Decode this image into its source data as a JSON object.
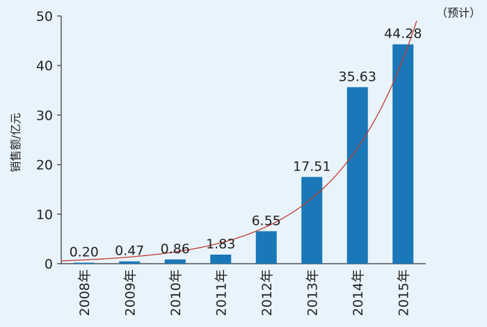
{
  "chart_data": {
    "type": "bar",
    "categories": [
      "2008年",
      "2009年",
      "2010年",
      "2011年",
      "2012年",
      "2013年",
      "2014年",
      "2015年"
    ],
    "values": [
      0.2,
      0.47,
      0.86,
      1.83,
      6.55,
      17.51,
      35.63,
      44.28
    ],
    "value_labels": [
      "0.20",
      "0.47",
      "0.86",
      "1.83",
      "6.55",
      "17.51",
      "35.63",
      "44.28"
    ],
    "ylabel": "销售额/亿元",
    "ylim": [
      0,
      50
    ],
    "yticks": [
      "0",
      "10",
      "20",
      "30",
      "40",
      "50"
    ],
    "note": "（预计）",
    "trend_line": true,
    "grid": false,
    "colors": {
      "bar": "#1a77b8",
      "trend": "#c0392b",
      "axis": "#333333",
      "background": "#e8f3fb"
    }
  }
}
